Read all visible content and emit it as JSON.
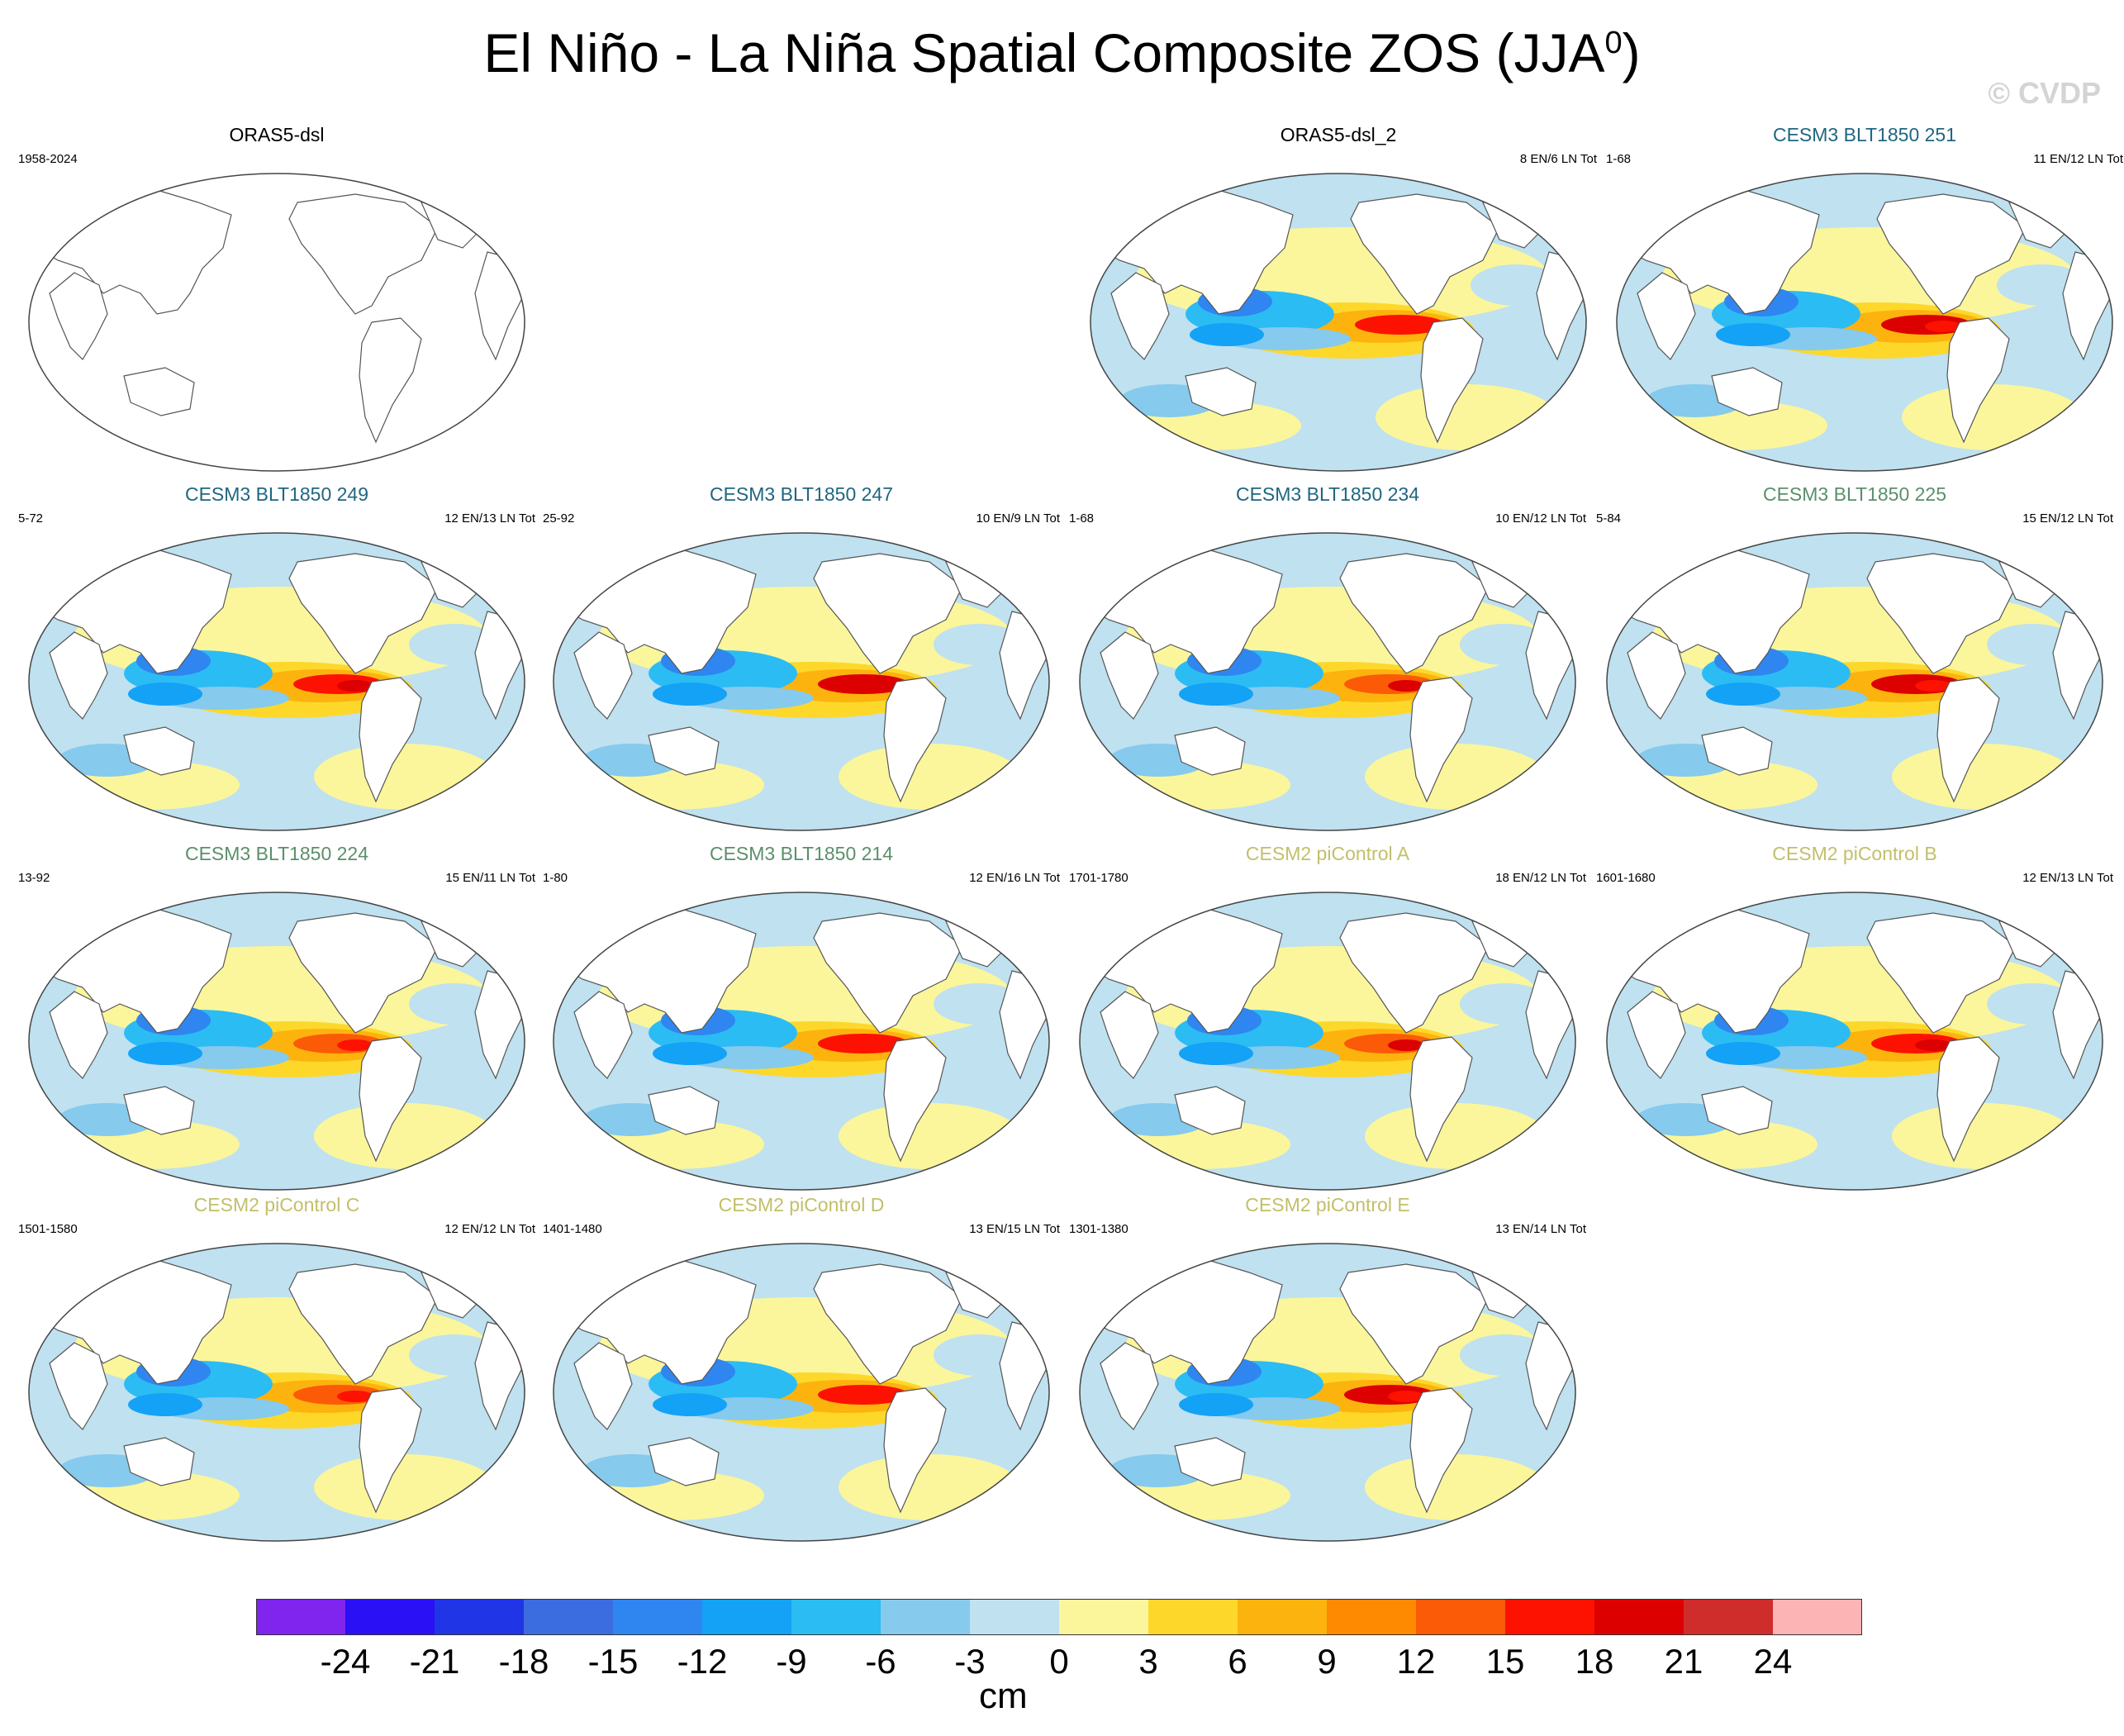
{
  "title_main": "El Niño - La Niña Spatial Composite ZOS (JJA",
  "title_sup": "0",
  "title_close": ")",
  "watermark": "© CVDP",
  "units": "cm",
  "colors": {
    "title_obs": "#000000",
    "title_cesm3_dark": "#1f6680",
    "title_cesm3_green": "#5b8f6b",
    "title_cesm2": "#c2bf6a",
    "land": "#ffffff",
    "coast": "#555555"
  },
  "panels": [
    {
      "title": "ORAS5-dsl",
      "years": "1958-2024",
      "count": "",
      "color": "title_obs",
      "filled": false
    },
    {
      "title": "ORAS5-dsl_2",
      "years": "",
      "count": "8 EN/6 LN Tot",
      "color": "title_obs",
      "filled": true
    },
    {
      "title": "CESM3 BLT1850 251",
      "years": "1-68",
      "count": "11 EN/12 LN Tot",
      "color": "title_cesm3_dark",
      "filled": true
    },
    {
      "title": "CESM3 BLT1850 249",
      "years": "5-72",
      "count": "12 EN/13 LN Tot",
      "color": "title_cesm3_dark",
      "filled": true
    },
    {
      "title": "CESM3 BLT1850 247",
      "years": "25-92",
      "count": "10 EN/9 LN Tot",
      "color": "title_cesm3_dark",
      "filled": true
    },
    {
      "title": "CESM3 BLT1850 234",
      "years": "1-68",
      "count": "10 EN/12 LN Tot",
      "color": "title_cesm3_dark",
      "filled": true
    },
    {
      "title": "CESM3 BLT1850 225",
      "years": "5-84",
      "count": "15 EN/12 LN Tot",
      "color": "title_cesm3_green",
      "filled": true
    },
    {
      "title": "CESM3 BLT1850 224",
      "years": "13-92",
      "count": "15 EN/11 LN Tot",
      "color": "title_cesm3_green",
      "filled": true
    },
    {
      "title": "CESM3 BLT1850 214",
      "years": "1-80",
      "count": "12 EN/16 LN Tot",
      "color": "title_cesm3_green",
      "filled": true
    },
    {
      "title": "CESM2 piControl A",
      "years": "1701-1780",
      "count": "18 EN/12 LN Tot",
      "color": "title_cesm2",
      "filled": true
    },
    {
      "title": "CESM2 piControl B",
      "years": "1601-1680",
      "count": "12 EN/13 LN Tot",
      "color": "title_cesm2",
      "filled": true
    },
    {
      "title": "CESM2 piControl C",
      "years": "1501-1580",
      "count": "12 EN/12 LN Tot",
      "color": "title_cesm2",
      "filled": true
    },
    {
      "title": "CESM2 piControl D",
      "years": "1401-1480",
      "count": "13 EN/15 LN Tot",
      "color": "title_cesm2",
      "filled": true
    },
    {
      "title": "CESM2 piControl E",
      "years": "1301-1380",
      "count": "13 EN/14 LN Tot",
      "color": "title_cesm2",
      "filled": true
    }
  ],
  "colorbar": {
    "colors": [
      "#7f25ee",
      "#2a10f5",
      "#2035e5",
      "#3c6de0",
      "#2f86f0",
      "#13a2f6",
      "#2bbcf4",
      "#86caed",
      "#bfe1f0",
      "#fbf69b",
      "#fdd82b",
      "#fdb30e",
      "#fd8a00",
      "#fb5a06",
      "#fd1100",
      "#dd0000",
      "#cf2c2c",
      "#fdb4b4"
    ],
    "ticks": [
      "-24",
      "-21",
      "-18",
      "-15",
      "-12",
      "-9",
      "-6",
      "-3",
      "0",
      "3",
      "6",
      "9",
      "12",
      "15",
      "18",
      "21",
      "24"
    ]
  }
}
